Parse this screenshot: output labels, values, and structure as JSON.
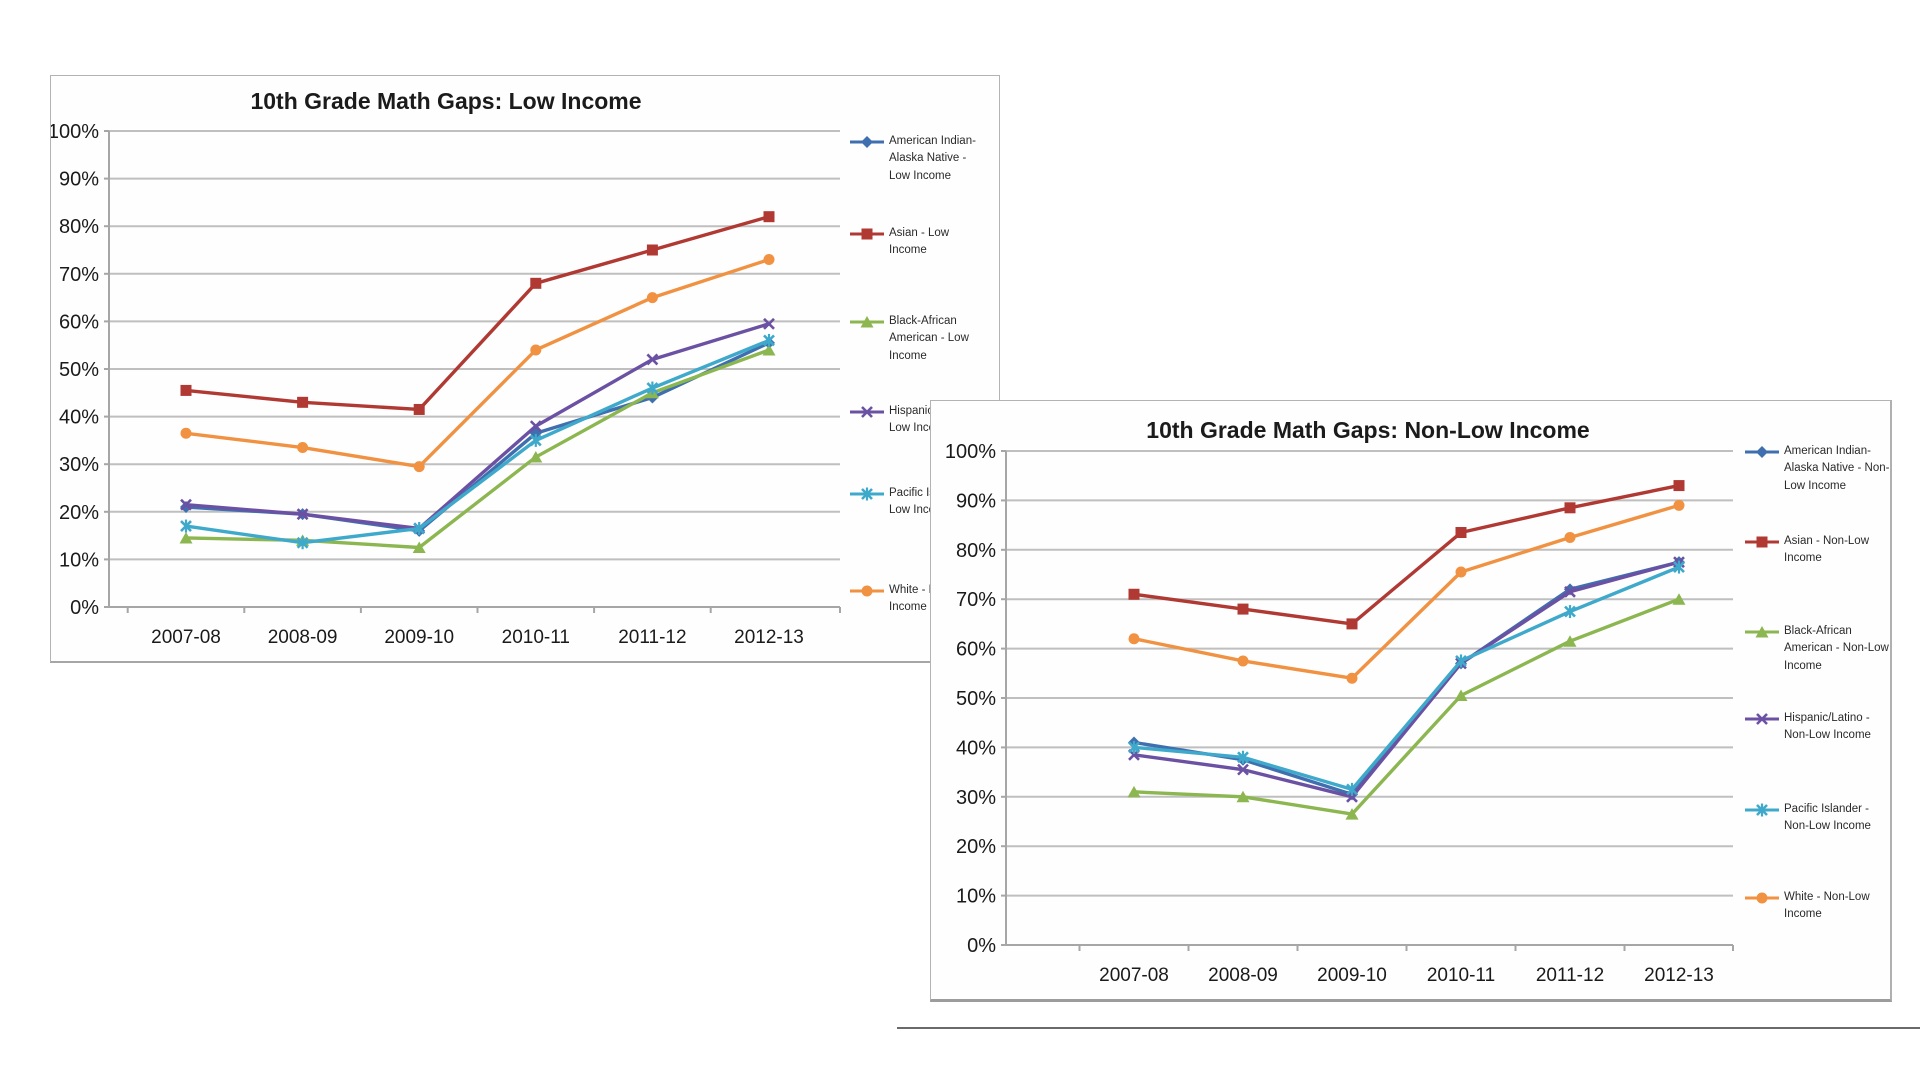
{
  "page": {
    "background": "#ffffff"
  },
  "divider": {
    "present": true
  },
  "chart_data": [
    {
      "type": "line",
      "title": "10th Grade Math Gaps: Low Income",
      "categories": [
        "2007-08",
        "2008-09",
        "2009-10",
        "2010-11",
        "2011-12",
        "2012-13"
      ],
      "xlabel": "",
      "ylabel": "",
      "ylim": [
        0,
        100
      ],
      "ytick_step": 10,
      "ytick_labels": [
        "0%",
        "10%",
        "20%",
        "30%",
        "40%",
        "50%",
        "60%",
        "70%",
        "80%",
        "90%",
        "100%"
      ],
      "grid": true,
      "legend_position": "right",
      "series": [
        {
          "name": "American Indian-Alaska Native - Low Income",
          "label_lines": [
            "American Indian-",
            "Alaska Native -",
            "Low Income"
          ],
          "color": "#3f6fae",
          "marker": "diamond",
          "values": [
            21,
            19.5,
            16,
            36.5,
            44,
            55.5
          ]
        },
        {
          "name": "Asian - Low Income",
          "label_lines": [
            "Asian - Low",
            "Income"
          ],
          "color": "#b03a33",
          "marker": "square",
          "values": [
            45.5,
            43,
            41.5,
            68,
            75,
            82
          ]
        },
        {
          "name": "Black-African American - Low Income",
          "label_lines": [
            "Black-African",
            "American - Low",
            "Income"
          ],
          "color": "#8cb650",
          "marker": "triangle",
          "values": [
            14.5,
            14,
            12.5,
            31.5,
            45,
            54
          ]
        },
        {
          "name": "Hispanic/Latino - Low Income",
          "label_lines": [
            "Hispanic/Latino -",
            "Low Income"
          ],
          "color": "#6b51a3",
          "marker": "x",
          "values": [
            21.5,
            19.5,
            16.5,
            38,
            52,
            59.5
          ]
        },
        {
          "name": "Pacific Islander - Low Income",
          "label_lines": [
            "Pacific Islander -",
            "Low Income"
          ],
          "color": "#3fa9cb",
          "marker": "asterisk",
          "values": [
            17,
            13.5,
            16.5,
            35,
            46,
            56
          ]
        },
        {
          "name": "White - Low Income",
          "label_lines": [
            "White - Low",
            "Income"
          ],
          "color": "#f09241",
          "marker": "circle",
          "values": [
            36.5,
            33.5,
            29.5,
            54,
            65,
            73
          ]
        }
      ]
    },
    {
      "type": "line",
      "title": "10th Grade Math Gaps: Non-Low Income",
      "categories": [
        "2007-08",
        "2008-09",
        "2009-10",
        "2010-11",
        "2011-12",
        "2012-13"
      ],
      "xlabel": "",
      "ylabel": "",
      "ylim": [
        0,
        100
      ],
      "ytick_step": 10,
      "ytick_labels": [
        "0%",
        "10%",
        "20%",
        "30%",
        "40%",
        "50%",
        "60%",
        "70%",
        "80%",
        "90%",
        "100%"
      ],
      "grid": true,
      "legend_position": "right",
      "series": [
        {
          "name": "American Indian-Alaska Native - Non-Low Income",
          "label_lines": [
            "American Indian-",
            "Alaska Native - Non-",
            "Low Income"
          ],
          "color": "#3f6fae",
          "marker": "diamond",
          "values": [
            41,
            37.5,
            30.5,
            57,
            72,
            77.5
          ]
        },
        {
          "name": "Asian - Non-Low Income",
          "label_lines": [
            "Asian - Non-Low",
            "Income"
          ],
          "color": "#b03a33",
          "marker": "square",
          "values": [
            71,
            68,
            65,
            83.5,
            88.5,
            93
          ]
        },
        {
          "name": "Black-African American - Non-Low Income",
          "label_lines": [
            "Black-African",
            "American - Non-Low",
            "Income"
          ],
          "color": "#8cb650",
          "marker": "triangle",
          "values": [
            31,
            30,
            26.5,
            50.5,
            61.5,
            70
          ]
        },
        {
          "name": "Hispanic/Latino - Non-Low Income",
          "label_lines": [
            "Hispanic/Latino -",
            "Non-Low Income"
          ],
          "color": "#6b51a3",
          "marker": "x",
          "values": [
            38.5,
            35.5,
            30,
            57,
            71.5,
            77.5
          ]
        },
        {
          "name": "Pacific Islander - Non-Low Income",
          "label_lines": [
            "Pacific Islander -",
            "Non-Low Income"
          ],
          "color": "#3fa9cb",
          "marker": "asterisk",
          "values": [
            40,
            38,
            31.5,
            57.5,
            67.5,
            76.5
          ]
        },
        {
          "name": "White - Non-Low Income",
          "label_lines": [
            "White - Non-Low",
            "Income"
          ],
          "color": "#f09241",
          "marker": "circle",
          "values": [
            62,
            57.5,
            54,
            75.5,
            82.5,
            89
          ]
        }
      ]
    }
  ]
}
